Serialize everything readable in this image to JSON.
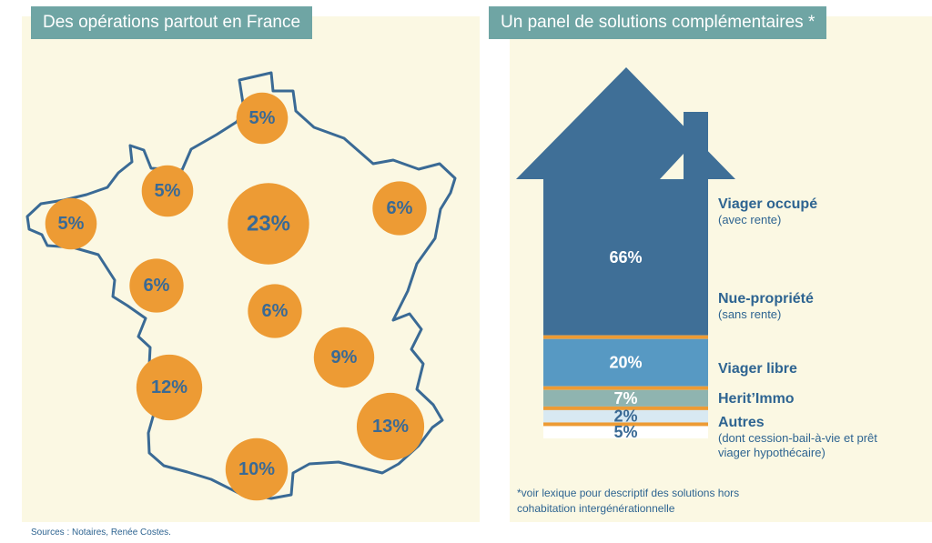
{
  "left_title": "Des opérations partout en France",
  "right_title": "Un panel de solutions complémentaires *",
  "footnote": "*voir lexique pour descriptif des solutions hors cohabitation intergénérationnelle",
  "sources": "Sources : Notaires, Renée Costes.",
  "colors": {
    "panel_bg": "#fbf8e3",
    "title_bg": "#6fa5a4",
    "map_outline": "#3a6a95",
    "bubble": "#ed9b34",
    "label_text": "#2e6491",
    "separator": "#ed9b34"
  },
  "chart_data": [
    {
      "type": "bubble-map",
      "title": "Des opérations partout en France",
      "regions": [
        {
          "label": "5%",
          "value": 5
        },
        {
          "label": "5%",
          "value": 5
        },
        {
          "label": "5%",
          "value": 5
        },
        {
          "label": "23%",
          "value": 23
        },
        {
          "label": "6%",
          "value": 6
        },
        {
          "label": "6%",
          "value": 6
        },
        {
          "label": "6%",
          "value": 6
        },
        {
          "label": "9%",
          "value": 9
        },
        {
          "label": "12%",
          "value": 12
        },
        {
          "label": "13%",
          "value": 13
        },
        {
          "label": "10%",
          "value": 10
        }
      ]
    },
    {
      "type": "bar",
      "title": "Un panel de solutions complémentaires *",
      "orientation": "stacked-vertical",
      "categories": [
        "Viager occupé",
        "Nue-propriété",
        "Viager libre",
        "Herit'Immo",
        "Autres"
      ],
      "subtitles": [
        "(avec rente)",
        "(sans rente)",
        "",
        "",
        "(dont cession-bail-à-vie et prêt viager hypothécaire)"
      ],
      "values": [
        66,
        20,
        7,
        2,
        5
      ],
      "labels": [
        "66%",
        "20%",
        "7%",
        "2%",
        "5%"
      ],
      "colors": [
        "#3f6f97",
        "#5799c3",
        "#8fb4b0",
        "#d8e9f2",
        "#ffffff"
      ]
    }
  ],
  "legend": [
    {
      "title": "Viager occupé",
      "subtitle": "(avec rente)"
    },
    {
      "title": "Nue-propriété",
      "subtitle": "(sans rente)"
    },
    {
      "title": "Viager libre",
      "subtitle": ""
    },
    {
      "title": "Herit’Immo",
      "subtitle": ""
    },
    {
      "title": "Autres",
      "subtitle": "(dont cession-bail-à-vie et prêt viager hypothécaire)"
    }
  ]
}
